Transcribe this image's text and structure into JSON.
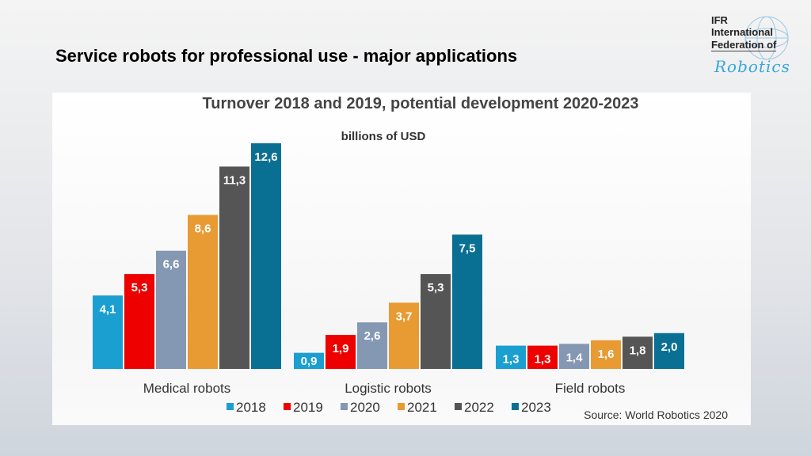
{
  "slide_title": "Service robots for professional use - major applications",
  "logo": {
    "line1": "IFR",
    "line2": "International",
    "line3": "Federation of",
    "line4": "Robotics"
  },
  "chart_data": {
    "type": "bar",
    "title": "Turnover 2018 and 2019, potential development 2020-2023",
    "subtitle": "billions of USD",
    "categories": [
      "Medical robots",
      "Logistic robots",
      "Field robots"
    ],
    "series": [
      {
        "name": "2018",
        "color": "#1a9fd0",
        "values": [
          4.1,
          0.9,
          1.3
        ],
        "labels": [
          "4,1",
          "0,9",
          "1,3"
        ]
      },
      {
        "name": "2019",
        "color": "#ee0000",
        "values": [
          5.3,
          1.9,
          1.3
        ],
        "labels": [
          "5,3",
          "1,9",
          "1,3"
        ]
      },
      {
        "name": "2020",
        "color": "#8498b3",
        "values": [
          6.6,
          2.6,
          1.4
        ],
        "labels": [
          "6,6",
          "2,6",
          "1,4"
        ]
      },
      {
        "name": "2021",
        "color": "#e89a33",
        "values": [
          8.6,
          3.7,
          1.6
        ],
        "labels": [
          "8,6",
          "3,7",
          "1,6"
        ]
      },
      {
        "name": "2022",
        "color": "#555555",
        "values": [
          11.3,
          5.3,
          1.8
        ],
        "labels": [
          "11,3",
          "5,3",
          "1,8"
        ]
      },
      {
        "name": "2023",
        "color": "#0a7093",
        "values": [
          12.6,
          7.5,
          2.0
        ],
        "labels": [
          "12,6",
          "7,5",
          "2,0"
        ]
      }
    ],
    "ylim": [
      0,
      12.6
    ],
    "grid": false,
    "legend_placement": "bottom",
    "source": "Source: World Robotics 2020"
  }
}
